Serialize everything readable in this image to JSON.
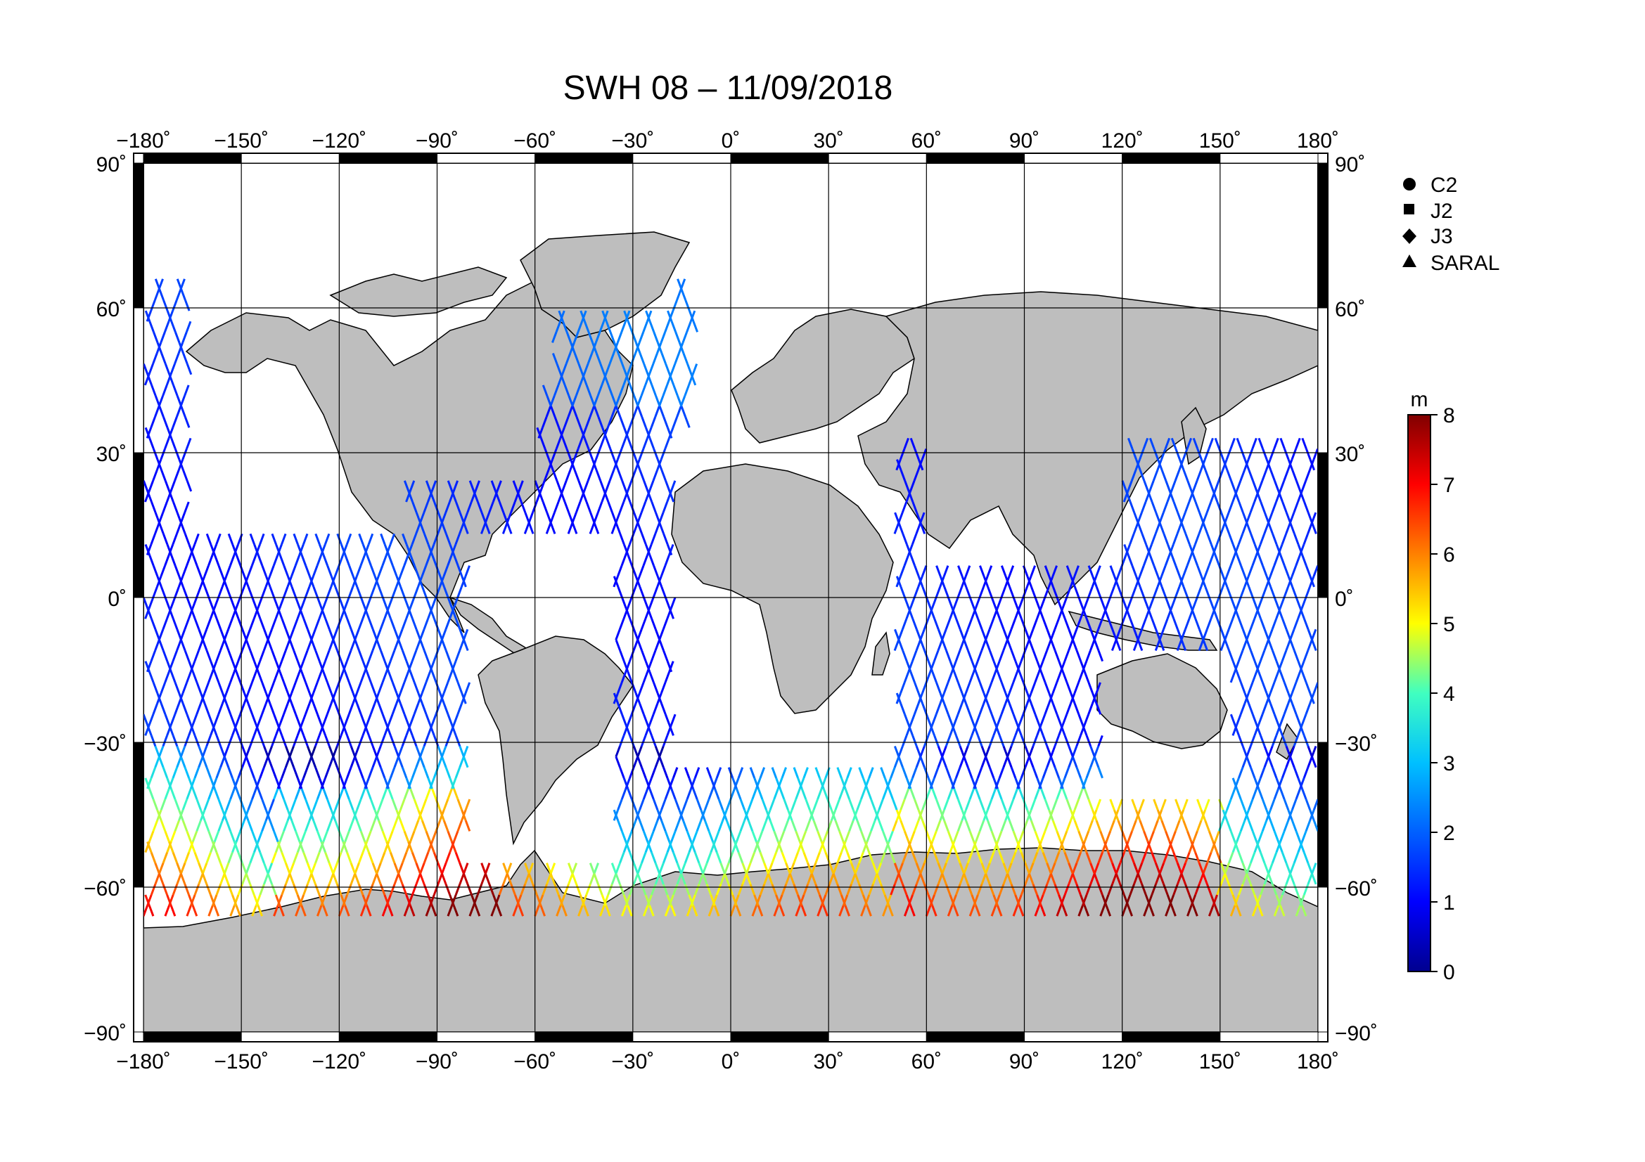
{
  "title": "SWH 08 – 11/09/2018",
  "map": {
    "projection": "equirectangular",
    "lon_range": [
      -180,
      180
    ],
    "lat_range": [
      -90,
      90
    ],
    "lon_ticks": [
      "−180˚",
      "−150˚",
      "−120˚",
      "−90˚",
      "−60˚",
      "−30˚",
      "0˚",
      "30˚",
      "60˚",
      "90˚",
      "120˚",
      "150˚",
      "180˚"
    ],
    "lat_ticks_left": [
      "90˚",
      "60˚",
      "30˚",
      "0˚",
      "−30˚",
      "−60˚",
      "−90˚"
    ],
    "lat_ticks_right": [
      "90˚",
      "60˚",
      "30˚",
      "0˚",
      "−30˚",
      "−60˚",
      "−90˚"
    ],
    "grid": true,
    "land_color": "#bebebe",
    "ocean_color": "#ffffff"
  },
  "legend": {
    "items": [
      {
        "label": "C2",
        "marker": "circle"
      },
      {
        "label": "J2",
        "marker": "square"
      },
      {
        "label": "J3",
        "marker": "diamond"
      },
      {
        "label": "SARAL",
        "marker": "triangle"
      }
    ]
  },
  "colorbar": {
    "unit": "m",
    "min": 0,
    "max": 8,
    "ticks": [
      "8",
      "7",
      "6",
      "5",
      "4",
      "3",
      "2",
      "1",
      "0"
    ],
    "colormap": [
      "#00008f",
      "#0000ff",
      "#0080ff",
      "#00ffff",
      "#80ff80",
      "#ffff00",
      "#ff8000",
      "#ff0000",
      "#800000"
    ]
  }
}
